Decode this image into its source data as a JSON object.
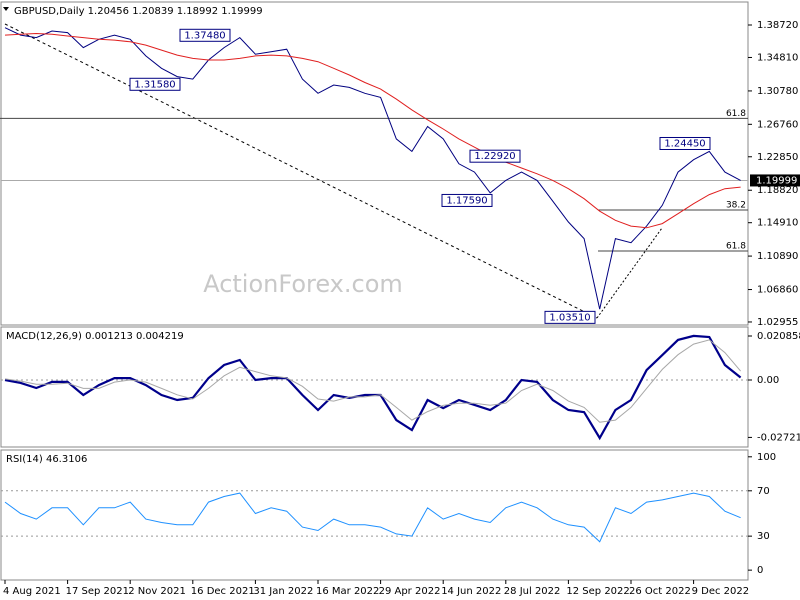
{
  "chart_data": [
    {
      "type": "line",
      "title": "GBPUSD,Daily  1.20456 1.20839 1.18992 1.19999",
      "watermark": "ActionForex.com",
      "categories": [
        "4 Aug 2021",
        null,
        null,
        null,
        "17 Sep 2021",
        null,
        null,
        null,
        "2 Nov 2021",
        null,
        null,
        null,
        "16 Dec 2021",
        null,
        null,
        null,
        "31 Jan 2022",
        null,
        null,
        null,
        "16 Mar 2022",
        null,
        null,
        null,
        "29 Apr 2022",
        null,
        null,
        null,
        "14 Jun 2022",
        null,
        null,
        null,
        "28 Jul 2022",
        null,
        null,
        null,
        "12 Sep 2022",
        null,
        null,
        null,
        "26 Oct 2022",
        null,
        null,
        null,
        "9 Dec 2022",
        null,
        null,
        null
      ],
      "series": [
        {
          "color": "#000080",
          "values": [
            1.384,
            1.375,
            1.372,
            1.38,
            1.378,
            1.36,
            1.37,
            1.375,
            1.37,
            1.35,
            1.335,
            1.325,
            1.322,
            1.345,
            1.36,
            1.372,
            1.352,
            1.355,
            1.358,
            1.322,
            1.305,
            1.315,
            1.312,
            1.305,
            1.3,
            1.25,
            1.235,
            1.265,
            1.25,
            1.22,
            1.21,
            1.185,
            1.2,
            1.21,
            1.2,
            1.175,
            1.15,
            1.13,
            1.045,
            1.13,
            1.125,
            1.145,
            1.17,
            1.21,
            1.225,
            1.235,
            1.21,
            1.19999
          ]
        },
        {
          "color": "#e02020",
          "values": [
            1.375,
            1.376,
            1.377,
            1.376,
            1.374,
            1.372,
            1.37,
            1.369,
            1.367,
            1.363,
            1.357,
            1.351,
            1.347,
            1.345,
            1.345,
            1.347,
            1.35,
            1.351,
            1.35,
            1.347,
            1.343,
            1.335,
            1.327,
            1.318,
            1.31,
            1.298,
            1.285,
            1.273,
            1.262,
            1.25,
            1.24,
            1.23,
            1.222,
            1.215,
            1.208,
            1.2,
            1.19,
            1.178,
            1.163,
            1.152,
            1.145,
            1.143,
            1.148,
            1.16,
            1.172,
            1.183,
            1.19,
            1.192
          ]
        }
      ],
      "ylim": [
        1.0259,
        1.4149
      ],
      "yticks": [
        {
          "value": 1.3872,
          "label": "1.38720"
        },
        {
          "value": 1.3481,
          "label": "1.34810"
        },
        {
          "value": 1.3078,
          "label": "1.30780"
        },
        {
          "value": 1.2676,
          "label": "1.26760"
        },
        {
          "value": 1.2285,
          "label": "1.22850"
        },
        {
          "value": 1.1882,
          "label": "1.18820"
        },
        {
          "value": 1.1491,
          "label": "1.14910"
        },
        {
          "value": 1.1089,
          "label": "1.10890"
        },
        {
          "value": 1.0686,
          "label": "1.06860"
        },
        1.02955
      ],
      "annotations": [
        {
          "value": 1.3748,
          "label": "1.37480"
        },
        {
          "value": 1.3158,
          "label": "1.31580"
        },
        {
          "value": 1.2292,
          "label": "1.22920"
        },
        {
          "value": 1.1759,
          "label": "1.17590"
        },
        {
          "value": 1.2445,
          "label": "1.24450"
        },
        {
          "value": 1.0351,
          "label": "1.03510"
        }
      ],
      "levels": [
        {
          "value": 1.2748,
          "label": "61.8"
        },
        {
          "value": 1.1644,
          "label": "38.2"
        },
        {
          "value": 1.115,
          "label": "61.8"
        }
      ],
      "last_price": 1.19999
    },
    {
      "type": "line",
      "title": "MACD(12,26,9) 0.001213 0.004219",
      "series": [
        {
          "color": "#00008b",
          "values": [
            0,
            -0.0014,
            -0.0038,
            -0.0009,
            -0.0009,
            -0.0071,
            -0.0024,
            0.0009,
            0.0009,
            -0.0024,
            -0.0071,
            -0.0095,
            -0.0085,
            0.0009,
            0.0071,
            0.0095,
            0,
            0.0009,
            0.0009,
            -0.0071,
            -0.0142,
            -0.0071,
            -0.0085,
            -0.0071,
            -0.0071,
            -0.019,
            -0.0237,
            -0.0095,
            -0.0133,
            -0.0095,
            -0.0118,
            -0.0142,
            -0.0095,
            0,
            -0.0009,
            -0.0095,
            -0.0142,
            -0.0152,
            -0.0275,
            -0.0142,
            -0.0095,
            0.0047,
            0.0118,
            0.019,
            0.0209,
            0.0204,
            0.0071,
            0.0012
          ]
        },
        {
          "color": "#a8a8a8",
          "values": [
            0.0005,
            -0.0005,
            -0.002,
            -0.002,
            -0.0015,
            -0.004,
            -0.004,
            -0.001,
            0,
            -0.001,
            -0.004,
            -0.007,
            -0.009,
            -0.004,
            0.002,
            0.006,
            0.004,
            0.002,
            0.001,
            -0.003,
            -0.009,
            -0.01,
            -0.008,
            -0.008,
            -0.007,
            -0.013,
            -0.019,
            -0.015,
            -0.012,
            -0.011,
            -0.011,
            -0.012,
            -0.011,
            -0.005,
            -0.002,
            -0.005,
            -0.01,
            -0.013,
            -0.02,
            -0.019,
            -0.013,
            -0.004,
            0.005,
            0.012,
            0.017,
            0.019,
            0.013,
            0.0042
          ]
        }
      ],
      "ylim": [
        -0.03176,
        0.02512
      ],
      "yticks": [
        0.020858,
        {
          "value": 0,
          "label": "0.00"
        },
        -0.027213
      ],
      "levels": [
        0
      ]
    },
    {
      "type": "line",
      "title": "RSI(14) 46.3106",
      "series": [
        {
          "color": "#1e90ff",
          "values": [
            60,
            50,
            45,
            55,
            55,
            40,
            55,
            55,
            60,
            45,
            42,
            40,
            40,
            60,
            65,
            68,
            50,
            55,
            52,
            38,
            35,
            45,
            40,
            40,
            38,
            32,
            30,
            55,
            45,
            50,
            45,
            42,
            55,
            60,
            55,
            45,
            40,
            38,
            25,
            55,
            50,
            60,
            62,
            65,
            68,
            65,
            52,
            46.31
          ]
        }
      ],
      "ylim": [
        -8.7,
        106
      ],
      "yticks": [
        100,
        70,
        30,
        0
      ],
      "levels": [
        70,
        30
      ]
    }
  ]
}
